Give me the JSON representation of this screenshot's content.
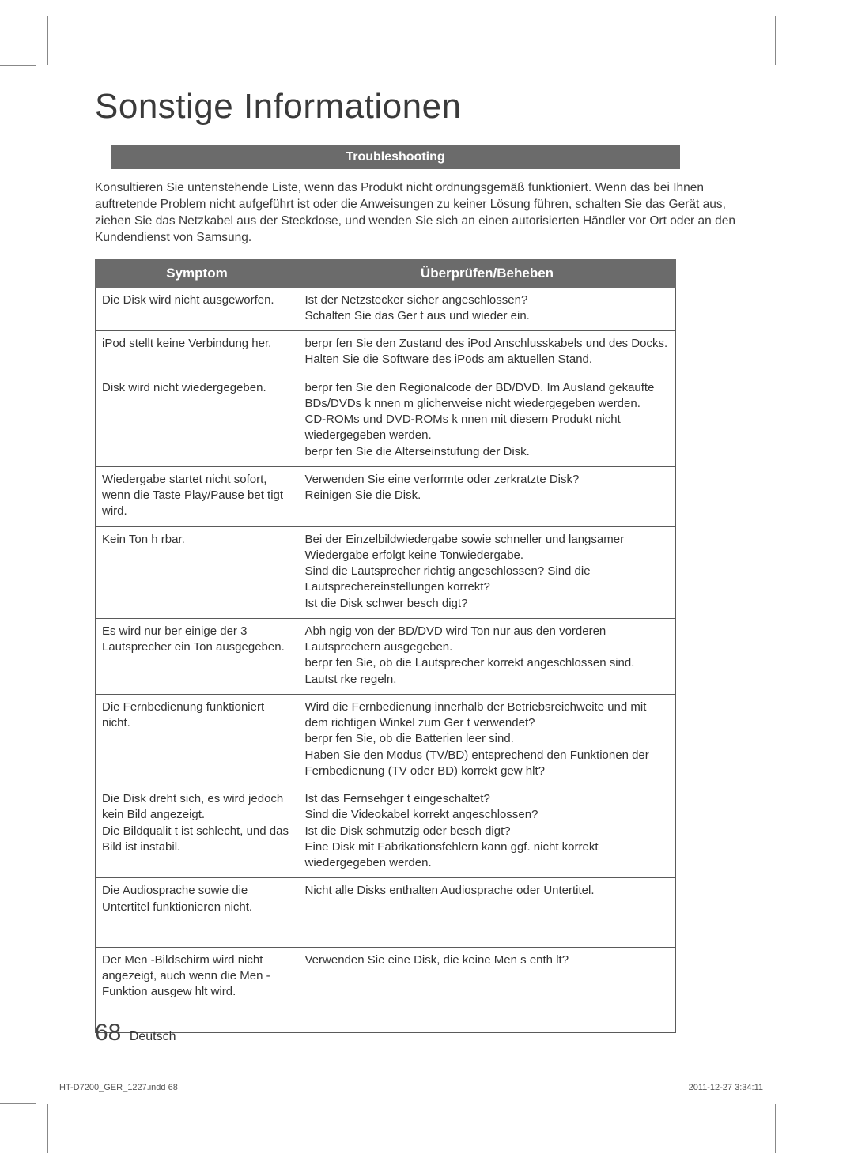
{
  "title": "Sonstige Informationen",
  "section_header": "Troubleshooting",
  "intro": "Konsultieren Sie untenstehende Liste, wenn das Produkt nicht ordnungsgemäß funktioniert. Wenn das bei Ihnen auftretende Problem nicht aufgeführt ist oder die Anweisungen zu keiner Lösung führen, schalten Sie das Gerät aus, ziehen Sie das Netzkabel aus der Steckdose, und wenden Sie sich an einen autorisierten Händler vor Ort oder an den Kundendienst von Samsung.",
  "columns": {
    "symptom": "Symptom",
    "action": "Überprüfen/Beheben"
  },
  "rows": [
    {
      "symptom": "Die Disk wird nicht ausgeworfen.",
      "action": "Ist der Netzstecker sicher angeschlossen?\nSchalten Sie das Ger t aus und wieder ein."
    },
    {
      "symptom": "iPod stellt keine Verbindung her.",
      "action": "berpr fen Sie den Zustand des iPod Anschlusskabels und des Docks.\nHalten Sie die Software des iPods am aktuellen Stand."
    },
    {
      "symptom": "Disk wird nicht wiedergegeben.",
      "action": "berpr fen Sie den Regionalcode der BD/DVD. Im Ausland gekaufte BDs/DVDs k nnen m glicherweise nicht wiedergegeben werden.\nCD-ROMs und DVD-ROMs k nnen mit diesem Produkt nicht wiedergegeben werden.\nberpr fen Sie die Alterseinstufung der Disk."
    },
    {
      "symptom": "Wiedergabe startet nicht sofort, wenn die Taste Play/Pause bet tigt wird.",
      "action": "Verwenden Sie eine verformte oder zerkratzte Disk?\nReinigen Sie die Disk."
    },
    {
      "symptom": "Kein Ton h rbar.",
      "action": "Bei der Einzelbildwiedergabe sowie schneller und langsamer Wiedergabe erfolgt keine Tonwiedergabe.\nSind die Lautsprecher richtig angeschlossen? Sind die Lautsprechereinstellungen korrekt?\nIst die Disk schwer besch digt?"
    },
    {
      "symptom": "Es wird nur  ber einige der 3 Lautsprecher ein Ton ausgegeben.",
      "action": "Abh ngig von der BD/DVD wird Ton nur aus den vorderen Lautsprechern ausgegeben.\nberpr fen Sie, ob die Lautsprecher korrekt angeschlossen sind.\nLautst rke regeln."
    },
    {
      "symptom": "Die Fernbedienung funktioniert nicht.",
      "action": "Wird die Fernbedienung innerhalb der Betriebsreichweite und mit dem richtigen Winkel zum Ger t verwendet?\nberpr fen Sie, ob die Batterien leer sind.\nHaben Sie den Modus (TV/BD) entsprechend den Funktionen der Fernbedienung (TV oder BD) korrekt gew hlt?",
      "small": true
    },
    {
      "symptom": "Die Disk dreht sich, es wird jedoch kein Bild angezeigt.\nDie Bildqualit t ist schlecht, und das Bild ist instabil.",
      "action": "Ist das Fernsehger t eingeschaltet?\nSind die Videokabel korrekt angeschlossen?\nIst die Disk schmutzig oder besch digt?\nEine Disk mit Fabrikationsfehlern kann ggf. nicht korrekt wiedergegeben werden."
    },
    {
      "symptom": "Die Audiosprache sowie die Untertitel funktionieren nicht.",
      "action": "Nicht alle Disks enthalten Audiosprache oder Untertitel.",
      "pad": true
    },
    {
      "symptom": "Der Men -Bildschirm wird nicht angezeigt, auch wenn die Men -Funktion ausgew hlt wird.",
      "action": "Verwenden Sie eine Disk, die keine Men s enth lt?",
      "pad": true
    }
  ],
  "footer": {
    "page_num": "68",
    "lang": "Deutsch"
  },
  "indd": "HT-D7200_GER_1227.indd   68",
  "timestamp": "2011-12-27   3:34:11"
}
